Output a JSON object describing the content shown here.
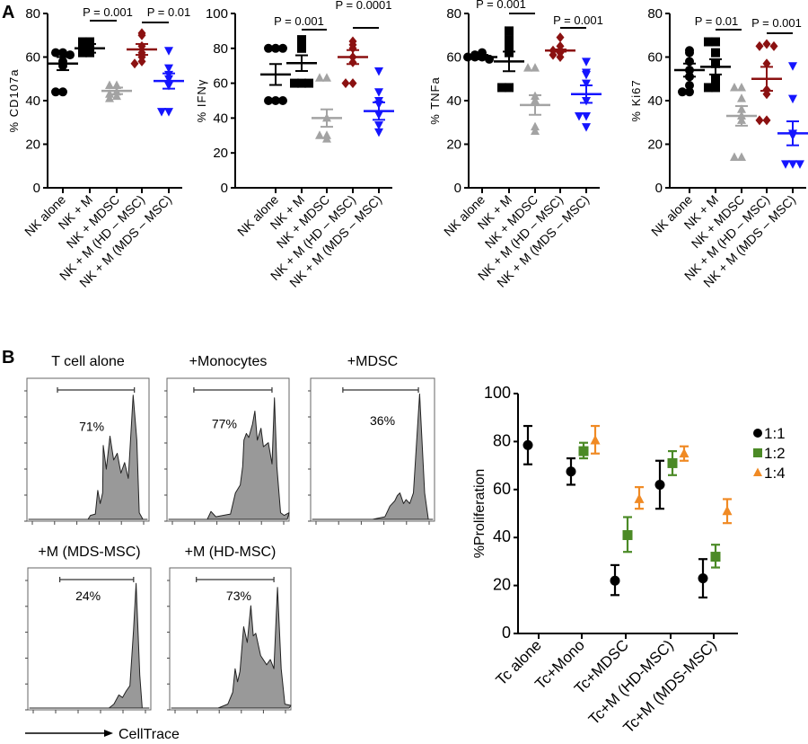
{
  "panel_labels": {
    "a": "A",
    "b": "B"
  },
  "colors": {
    "black": "#000000",
    "gray": "#a3a3a3",
    "darkred": "#8b1111",
    "blue": "#1515ff",
    "green": "#4b8a26",
    "orange": "#f08a24",
    "hist_fill": "#999999"
  },
  "chart_data": [
    {
      "type": "scatter",
      "ylabel": "% CD107a",
      "ylim": [
        0,
        80
      ],
      "yticks": [
        0,
        20,
        40,
        60,
        80
      ],
      "categories": [
        "NK alone",
        "NK + M",
        "NK + MDSC",
        "NK + M (HD – MSC)",
        "NK + M (MDS – MSC)"
      ],
      "series": [
        {
          "marker": "circle",
          "color": "black",
          "points": [
            62,
            62,
            61,
            58,
            56,
            44,
            44
          ],
          "mean": 57,
          "sem": 3
        },
        {
          "marker": "square",
          "color": "black",
          "points": [
            67,
            67,
            63,
            62,
            62,
            64
          ],
          "mean": 64,
          "sem": 2
        },
        {
          "marker": "triangle-up",
          "color": "gray",
          "points": [
            47,
            47,
            44,
            43,
            42,
            41
          ],
          "mean": 44.5,
          "sem": 1.5
        },
        {
          "marker": "diamond",
          "color": "darkred",
          "points": [
            71,
            70,
            65,
            62,
            60,
            58,
            57
          ],
          "mean": 63.5,
          "sem": 2.5
        },
        {
          "marker": "triangle-down",
          "color": "blue",
          "points": [
            63,
            55,
            52,
            50,
            47,
            35,
            35
          ],
          "mean": 49,
          "sem": 3.5
        }
      ],
      "comparisons": [
        {
          "from": 1,
          "to": 2,
          "label": "P = 0.001"
        },
        {
          "from": 3,
          "to": 4,
          "label": "P = 0.01"
        }
      ]
    },
    {
      "type": "scatter",
      "ylabel": "% IFNγ",
      "ylim": [
        0,
        100
      ],
      "yticks": [
        0,
        20,
        40,
        60,
        80,
        100
      ],
      "categories": [
        "NK alone",
        "NK + M",
        "NK + MDSC",
        "NK + M (HD – MSC)",
        "NK + M (MDS – MSC)"
      ],
      "series": [
        {
          "marker": "circle",
          "color": "black",
          "points": [
            80,
            80,
            80,
            50,
            50,
            50
          ],
          "mean": 65,
          "sem": 6
        },
        {
          "marker": "square",
          "color": "black",
          "points": [
            85,
            83,
            80,
            60,
            60,
            60
          ],
          "mean": 71.5,
          "sem": 4.5
        },
        {
          "marker": "triangle-up",
          "color": "gray",
          "points": [
            63,
            63,
            40,
            30,
            30,
            28
          ],
          "mean": 40,
          "sem": 5
        },
        {
          "marker": "diamond",
          "color": "darkred",
          "points": [
            84,
            82,
            80,
            75,
            72,
            60,
            60
          ],
          "mean": 75,
          "sem": 4
        },
        {
          "marker": "triangle-down",
          "color": "blue",
          "points": [
            67,
            55,
            50,
            48,
            42,
            36,
            32
          ],
          "mean": 44,
          "sem": 5
        }
      ],
      "comparisons": [
        {
          "from": 1,
          "to": 2,
          "label": "P = 0.001"
        },
        {
          "from": 3,
          "to": 4,
          "label": "P = 0.0001"
        }
      ]
    },
    {
      "type": "scatter",
      "ylabel": "% TNFa",
      "ylim": [
        0,
        80
      ],
      "yticks": [
        0,
        20,
        40,
        60,
        80
      ],
      "categories": [
        "NK alone",
        "NK + M",
        "NK + MDSC",
        "NK + M (HD – MSC)",
        "NK + M (MDS – MSC)"
      ],
      "series": [
        {
          "marker": "circle",
          "color": "black",
          "points": [
            62,
            61,
            60,
            60,
            59,
            60
          ],
          "mean": 60,
          "sem": 1
        },
        {
          "marker": "square",
          "color": "black",
          "points": [
            72,
            68,
            65,
            62,
            46,
            46
          ],
          "mean": 58,
          "sem": 4.5
        },
        {
          "marker": "triangle-up",
          "color": "gray",
          "points": [
            55,
            55,
            42,
            40,
            28,
            26
          ],
          "mean": 38,
          "sem": 4.5
        },
        {
          "marker": "diamond",
          "color": "darkred",
          "points": [
            69,
            65,
            63,
            63,
            62,
            61,
            60
          ],
          "mean": 63,
          "sem": 0.5
        },
        {
          "marker": "triangle-down",
          "color": "blue",
          "points": [
            58,
            53,
            52,
            48,
            40,
            33,
            33,
            28
          ],
          "mean": 43,
          "sem": 4
        }
      ],
      "comparisons": [
        {
          "from": 1,
          "to": 2,
          "label": "P = 0.001"
        },
        {
          "from": 3,
          "to": 4,
          "label": "P = 0.001"
        }
      ]
    },
    {
      "type": "scatter",
      "ylabel": "% Ki67",
      "ylim": [
        0,
        80
      ],
      "yticks": [
        0,
        20,
        40,
        60,
        80
      ],
      "categories": [
        "NK alone",
        "NK + M",
        "NK + MDSC",
        "NK + M (HD – MSC)",
        "NK + M (MDS – MSC)"
      ],
      "series": [
        {
          "marker": "circle",
          "color": "black",
          "points": [
            63,
            62,
            58,
            54,
            51,
            47,
            44,
            44
          ],
          "mean": 54,
          "sem": 3
        },
        {
          "marker": "square",
          "color": "black",
          "points": [
            67,
            67,
            62,
            57,
            50,
            46,
            46
          ],
          "mean": 55.5,
          "sem": 3.5
        },
        {
          "marker": "triangle-up",
          "color": "gray",
          "points": [
            46,
            46,
            41,
            36,
            33,
            31,
            14,
            14
          ],
          "mean": 33,
          "sem": 4.5
        },
        {
          "marker": "diamond",
          "color": "darkred",
          "points": [
            66,
            65,
            65,
            57,
            45,
            43,
            31,
            31
          ],
          "mean": 50,
          "sem": 5.5
        },
        {
          "marker": "triangle-down",
          "color": "blue",
          "points": [
            56,
            41,
            25,
            24,
            11,
            11,
            11
          ],
          "mean": 25,
          "sem": 5.5
        }
      ],
      "comparisons": [
        {
          "from": 1,
          "to": 2,
          "label": "P = 0.01"
        },
        {
          "from": 3,
          "to": 4,
          "label": "P = 0.001"
        }
      ]
    },
    {
      "type": "scatter",
      "ylabel": "%Proliferation",
      "ylim": [
        0,
        100
      ],
      "yticks": [
        0,
        20,
        40,
        60,
        80,
        100
      ],
      "categories": [
        "Tc alone",
        "Tc+Mono",
        "Tc+MDSC",
        "Tc+M (HD-MSC)",
        "Tc+M (MDS-MSC)"
      ],
      "legend": "right",
      "series": [
        {
          "name": "1:1",
          "marker": "circle",
          "color": "black",
          "values": [
            78.5,
            67.5,
            22,
            62,
            23
          ],
          "err_low": [
            70.5,
            62,
            16,
            52,
            15
          ],
          "err_high": [
            86.5,
            73,
            28.5,
            72,
            31
          ]
        },
        {
          "name": "1:2",
          "marker": "square",
          "color": "green",
          "values": [
            null,
            76,
            41,
            71,
            32
          ],
          "err_low": [
            null,
            73,
            34,
            66,
            27.5
          ],
          "err_high": [
            null,
            79.5,
            48.5,
            76,
            37
          ]
        },
        {
          "name": "1:4",
          "marker": "triangle-up",
          "color": "orange",
          "values": [
            null,
            80.5,
            56,
            75,
            51
          ],
          "err_low": [
            null,
            75,
            52,
            72,
            46
          ],
          "err_high": [
            null,
            86.5,
            61,
            78,
            56
          ]
        }
      ]
    }
  ],
  "flow": {
    "xlabel": "CellTrace",
    "histograms": [
      {
        "title": "T cell alone",
        "gate_percent": "71%"
      },
      {
        "title": "+Monocytes",
        "gate_percent": "77%"
      },
      {
        "title": "+MDSC",
        "gate_percent": "36%"
      },
      {
        "title": "+M (MDS-MSC)",
        "gate_percent": "24%"
      },
      {
        "title": "+M (HD-MSC)",
        "gate_percent": "73%"
      }
    ]
  }
}
